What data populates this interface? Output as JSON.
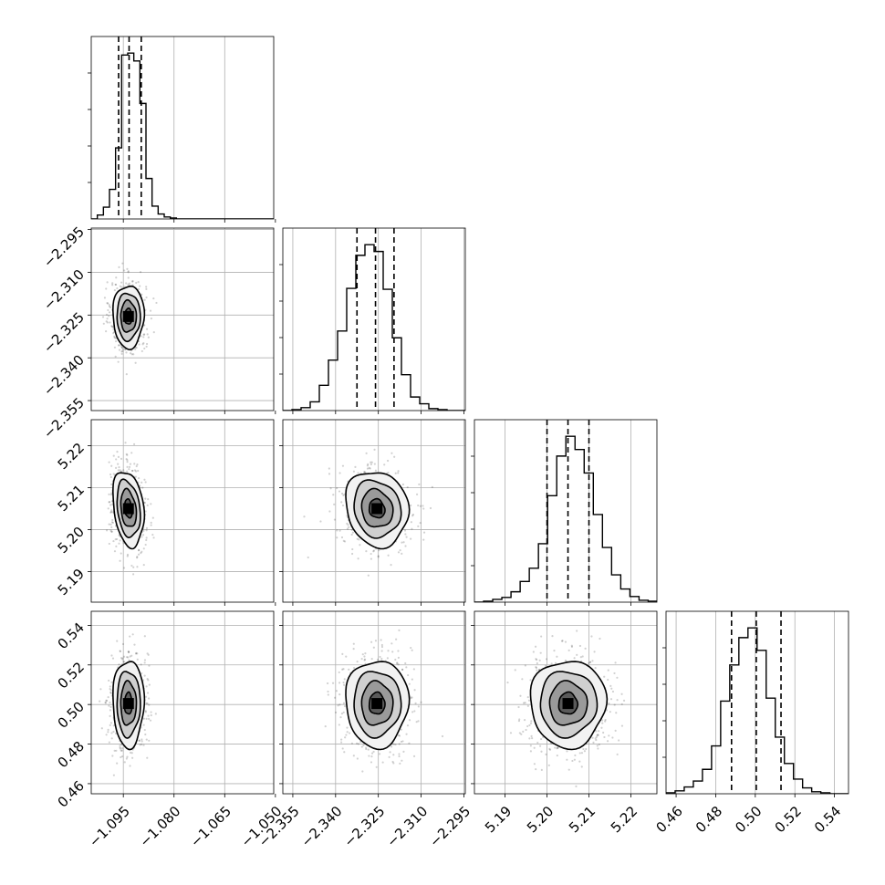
{
  "chart_data": {
    "type": "corner",
    "n_params": 4,
    "grid": true,
    "parameters": [
      {
        "ticks": [
          "−1.095",
          "−1.080",
          "−1.065",
          "−1.050"
        ],
        "tick_values": [
          -1.095,
          -1.08,
          -1.065,
          -1.05
        ],
        "range": [
          -1.1045,
          -1.0505
        ]
      },
      {
        "ticks": [
          "−2.355",
          "−2.340",
          "−2.325",
          "−2.310",
          "−2.295"
        ],
        "tick_values": [
          -2.355,
          -2.34,
          -2.325,
          -2.31,
          -2.295
        ],
        "range": [
          -2.3585,
          -2.2945
        ]
      },
      {
        "ticks": [
          "5.19",
          "5.20",
          "5.21",
          "5.22"
        ],
        "tick_values": [
          5.19,
          5.2,
          5.21,
          5.22
        ],
        "range": [
          5.1827,
          5.2262
        ]
      },
      {
        "ticks": [
          "0.46",
          "0.48",
          "0.50",
          "0.52",
          "0.54"
        ],
        "tick_values": [
          0.46,
          0.48,
          0.5,
          0.52,
          0.54
        ],
        "range": [
          0.4549,
          0.5471
        ]
      }
    ],
    "histograms": [
      {
        "quantiles": [
          -1.0964,
          -1.0933,
          -1.0897
        ],
        "bin_edges_start": -1.1045,
        "bin_width": 0.0018,
        "counts": [
          0,
          4,
          12,
          30,
          72,
          166,
          168,
          160,
          117,
          41,
          13,
          5,
          2,
          1,
          0,
          0,
          0,
          0,
          0,
          0,
          0,
          0,
          0,
          0,
          0,
          0,
          0,
          0,
          0,
          0
        ]
      },
      {
        "quantiles": [
          -2.3325,
          -2.326,
          -2.3195
        ],
        "bin_edges_start": -2.3585,
        "bin_width": 0.0032,
        "counts": [
          0,
          1,
          3,
          9,
          26,
          52,
          82,
          126,
          160,
          171,
          164,
          125,
          75,
          37,
          14,
          7,
          2,
          1,
          0,
          0
        ]
      },
      {
        "quantiles": [
          5.2,
          5.205,
          5.21
        ],
        "bin_edges_start": 5.1827,
        "bin_width": 0.00218,
        "counts": [
          0,
          1,
          3,
          5,
          11,
          22,
          36,
          62,
          113,
          155,
          176,
          162,
          137,
          93,
          58,
          29,
          14,
          6,
          2,
          1
        ]
      },
      {
        "quantiles": [
          0.488,
          0.5005,
          0.513
        ],
        "bin_edges_start": 0.4549,
        "bin_width": 0.0046,
        "counts": [
          1,
          3,
          7,
          13,
          25,
          49,
          95,
          132,
          160,
          170,
          147,
          98,
          58,
          31,
          15,
          6,
          2,
          1,
          0,
          0
        ]
      }
    ],
    "pairs": [
      {
        "x": 0,
        "y": 1,
        "center": [
          -1.0935,
          -2.3255
        ],
        "sigma": [
          0.0023,
          0.0055
        ],
        "rho": 0.0
      },
      {
        "x": 0,
        "y": 2,
        "center": [
          -1.0935,
          5.205
        ],
        "sigma": [
          0.0023,
          0.0045
        ],
        "rho": -0.25
      },
      {
        "x": 1,
        "y": 2,
        "center": [
          -2.3255,
          5.205
        ],
        "sigma": [
          0.0055,
          0.0045
        ],
        "rho": -0.12
      },
      {
        "x": 0,
        "y": 3,
        "center": [
          -1.0935,
          0.5005
        ],
        "sigma": [
          0.0023,
          0.011
        ],
        "rho": 0.0
      },
      {
        "x": 1,
        "y": 3,
        "center": [
          -2.3255,
          0.5005
        ],
        "sigma": [
          0.0055,
          0.011
        ],
        "rho": 0.0
      },
      {
        "x": 2,
        "y": 3,
        "center": [
          5.205,
          0.5005
        ],
        "sigma": [
          0.0045,
          0.011
        ],
        "rho": 0.0
      }
    ],
    "contour_levels_sigma": [
      0.5,
      1.0,
      1.5,
      2.0
    ]
  }
}
